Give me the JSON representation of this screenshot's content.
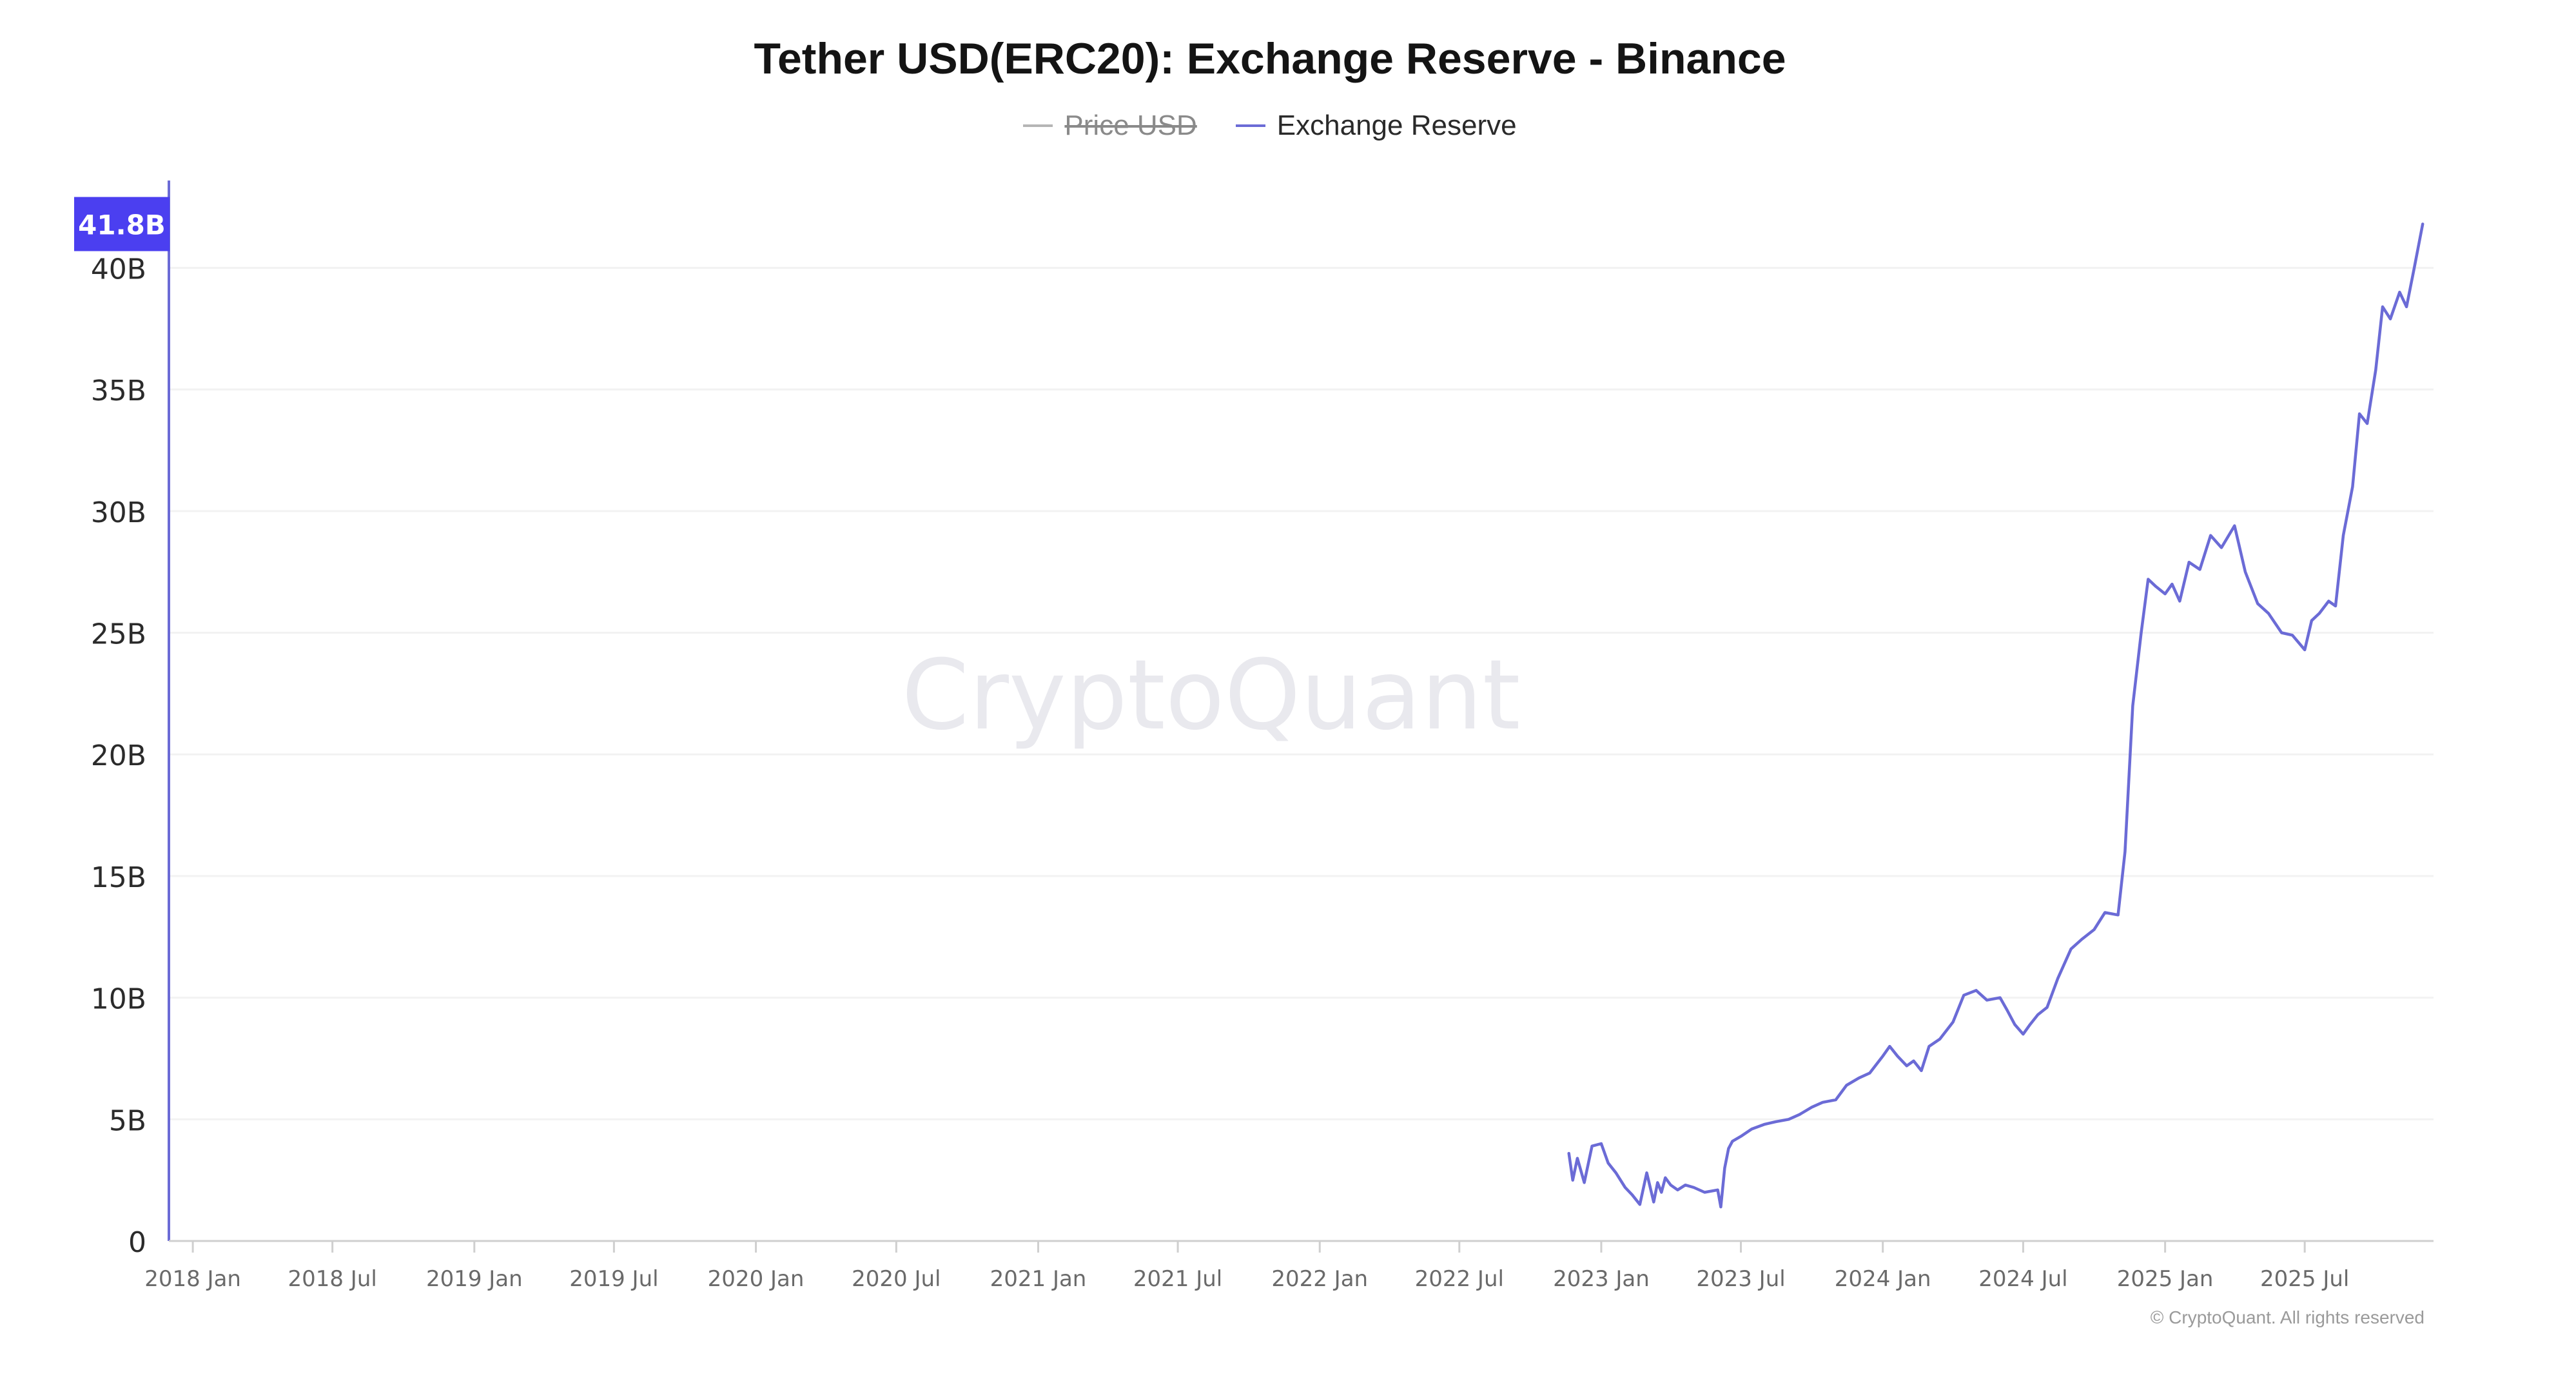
{
  "chart_data": {
    "type": "line",
    "title": "Tether USD(ERC20): Exchange Reserve - Binance",
    "xlabel": "",
    "ylabel": "",
    "ylim": [
      0,
      42
    ],
    "y_ticks": [
      0,
      5,
      10,
      15,
      20,
      25,
      30,
      35,
      40
    ],
    "y_tick_labels": [
      "0",
      "5B",
      "10B",
      "15B",
      "20B",
      "25B",
      "30B",
      "35B",
      "40B"
    ],
    "x_range": [
      "2017-12-01",
      "2025-12-15"
    ],
    "x_ticks": [
      "2018-01-01",
      "2018-07-01",
      "2019-01-01",
      "2019-07-01",
      "2020-01-01",
      "2020-07-01",
      "2021-01-01",
      "2021-07-01",
      "2022-01-01",
      "2022-07-01",
      "2023-01-01",
      "2023-07-01",
      "2024-01-01",
      "2024-07-01",
      "2025-01-01",
      "2025-07-01"
    ],
    "x_tick_labels": [
      "2018 Jan",
      "2018 Jul",
      "2019 Jan",
      "2019 Jul",
      "2020 Jan",
      "2020 Jul",
      "2021 Jan",
      "2021 Jul",
      "2022 Jan",
      "2022 Jul",
      "2023 Jan",
      "2023 Jul",
      "2024 Jan",
      "2024 Jul",
      "2025 Jan",
      "2025 Jul"
    ],
    "grid": true,
    "legend_position": "top-center",
    "last_value_label": "41.8B",
    "last_value": 41.8,
    "series": [
      {
        "name": "Price USD",
        "hidden": true,
        "color": "#9e9e9e",
        "x": [],
        "y": []
      },
      {
        "name": "Exchange Reserve",
        "hidden": false,
        "color": "#6b6bd6",
        "x": [
          "2022-11-20",
          "2022-11-25",
          "2022-12-01",
          "2022-12-10",
          "2022-12-20",
          "2023-01-01",
          "2023-01-10",
          "2023-01-20",
          "2023-02-01",
          "2023-02-10",
          "2023-02-20",
          "2023-03-01",
          "2023-03-10",
          "2023-03-15",
          "2023-03-20",
          "2023-03-25",
          "2023-04-01",
          "2023-04-10",
          "2023-04-20",
          "2023-05-01",
          "2023-05-15",
          "2023-06-01",
          "2023-06-05",
          "2023-06-10",
          "2023-06-15",
          "2023-06-20",
          "2023-07-01",
          "2023-07-15",
          "2023-08-01",
          "2023-08-15",
          "2023-09-01",
          "2023-09-15",
          "2023-10-01",
          "2023-10-15",
          "2023-11-01",
          "2023-11-15",
          "2023-12-01",
          "2023-12-15",
          "2024-01-01",
          "2024-01-10",
          "2024-01-20",
          "2024-02-01",
          "2024-02-10",
          "2024-02-20",
          "2024-03-01",
          "2024-03-15",
          "2024-04-01",
          "2024-04-15",
          "2024-05-01",
          "2024-05-15",
          "2024-06-01",
          "2024-06-10",
          "2024-06-20",
          "2024-07-01",
          "2024-07-10",
          "2024-07-20",
          "2024-08-01",
          "2024-08-15",
          "2024-09-01",
          "2024-09-15",
          "2024-10-01",
          "2024-10-15",
          "2024-11-01",
          "2024-11-10",
          "2024-11-20",
          "2024-12-01",
          "2024-12-10",
          "2024-12-20",
          "2025-01-01",
          "2025-01-10",
          "2025-01-20",
          "2025-02-01",
          "2025-02-15",
          "2025-03-01",
          "2025-03-15",
          "2025-04-01",
          "2025-04-15",
          "2025-05-01",
          "2025-05-15",
          "2025-06-01",
          "2025-06-15",
          "2025-07-01",
          "2025-07-10",
          "2025-07-20",
          "2025-08-01",
          "2025-08-10",
          "2025-08-20",
          "2025-09-01",
          "2025-09-10",
          "2025-09-20",
          "2025-10-01",
          "2025-10-10",
          "2025-10-20",
          "2025-11-01",
          "2025-11-10",
          "2025-11-20",
          "2025-12-01"
        ],
        "y": [
          3.6,
          2.5,
          3.4,
          2.4,
          3.9,
          4.0,
          3.2,
          2.8,
          2.2,
          1.9,
          1.5,
          2.8,
          1.6,
          2.4,
          2.0,
          2.6,
          2.3,
          2.1,
          2.3,
          2.2,
          2.0,
          2.1,
          1.4,
          3.0,
          3.8,
          4.1,
          4.3,
          4.6,
          4.8,
          4.9,
          5.0,
          5.2,
          5.5,
          5.7,
          5.8,
          6.4,
          6.7,
          6.9,
          7.6,
          8.0,
          7.6,
          7.2,
          7.4,
          7.0,
          8.0,
          8.3,
          9.0,
          10.1,
          10.3,
          9.9,
          10.0,
          9.5,
          8.9,
          8.5,
          8.9,
          9.3,
          9.6,
          10.8,
          12.0,
          12.4,
          12.8,
          13.5,
          13.4,
          16.0,
          22.0,
          25.0,
          27.2,
          26.9,
          26.6,
          27.0,
          26.3,
          27.9,
          27.6,
          29.0,
          28.5,
          29.4,
          27.5,
          26.2,
          25.8,
          25.0,
          24.9,
          24.3,
          25.5,
          25.8,
          26.3,
          26.1,
          29.0,
          31.0,
          34.0,
          33.6,
          35.8,
          38.4,
          37.9,
          39.0,
          38.4,
          40.0,
          41.8
        ]
      }
    ]
  },
  "watermark": "CryptoQuant",
  "footer": "© CryptoQuant. All rights reserved"
}
